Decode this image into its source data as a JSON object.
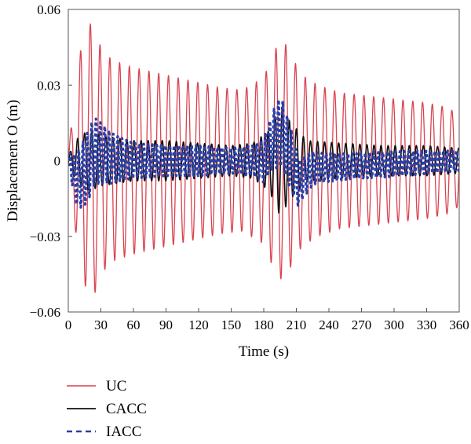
{
  "chart_data": {
    "type": "line",
    "xlabel": "Time (s)",
    "ylabel": "Displacement O (m)",
    "xlim": [
      0,
      360
    ],
    "ylim": [
      -0.06,
      0.06
    ],
    "x_ticks": [
      0,
      30,
      60,
      90,
      120,
      150,
      180,
      210,
      240,
      270,
      300,
      330,
      360
    ],
    "x_tick_labels": [
      "0",
      "30",
      "60",
      "90",
      "120",
      "150",
      "180",
      "210",
      "240",
      "270",
      "300",
      "330",
      "360"
    ],
    "y_ticks": [
      -0.06,
      -0.03,
      0,
      0.03,
      0.06
    ],
    "y_tick_labels": [
      "−0.06",
      "−0.03",
      "0",
      "0.03",
      "0.06"
    ],
    "grid": false,
    "legend_position": "below",
    "sample_step_s": 1,
    "series": [
      {
        "name": "UC",
        "color": "#d9434f",
        "style": "solid",
        "period_s": 9,
        "envelope": {
          "t": [
            0,
            5,
            12,
            22,
            30,
            40,
            60,
            80,
            100,
            120,
            140,
            160,
            180,
            190,
            198,
            205,
            215,
            230,
            250,
            270,
            290,
            310,
            330,
            350,
            360
          ],
          "amplitude": [
            0.004,
            0.022,
            0.046,
            0.056,
            0.045,
            0.04,
            0.037,
            0.035,
            0.033,
            0.031,
            0.029,
            0.028,
            0.033,
            0.044,
            0.048,
            0.042,
            0.034,
            0.03,
            0.027,
            0.026,
            0.025,
            0.024,
            0.023,
            0.021,
            0.018
          ]
        }
      },
      {
        "name": "CACC",
        "color": "#111111",
        "style": "solid",
        "period_s": 6.5,
        "envelope": {
          "t": [
            0,
            10,
            20,
            30,
            45,
            60,
            90,
            120,
            150,
            170,
            185,
            195,
            205,
            220,
            250,
            290,
            330,
            360
          ],
          "amplitude": [
            0.002,
            0.01,
            0.012,
            0.01,
            0.009,
            0.008,
            0.008,
            0.007,
            0.006,
            0.007,
            0.012,
            0.022,
            0.015,
            0.008,
            0.007,
            0.006,
            0.006,
            0.005
          ]
        }
      },
      {
        "name": "IACC",
        "color": "#2a3fa8",
        "style": "dashed",
        "period_s": 4,
        "offset": {
          "t": [
            0,
            8,
            16,
            24,
            30,
            40,
            60,
            180,
            188,
            196,
            204,
            212,
            225,
            360
          ],
          "value": [
            0,
            -0.008,
            -0.004,
            0.004,
            0.003,
            0.001,
            0,
            0,
            0.008,
            0.012,
            0.002,
            -0.009,
            -0.003,
            0
          ]
        },
        "envelope": {
          "t": [
            0,
            10,
            20,
            30,
            45,
            60,
            90,
            120,
            150,
            170,
            185,
            195,
            205,
            215,
            230,
            260,
            300,
            360
          ],
          "amplitude": [
            0.003,
            0.012,
            0.014,
            0.012,
            0.009,
            0.007,
            0.006,
            0.006,
            0.005,
            0.006,
            0.01,
            0.014,
            0.012,
            0.008,
            0.006,
            0.005,
            0.005,
            0.004
          ]
        }
      }
    ]
  }
}
